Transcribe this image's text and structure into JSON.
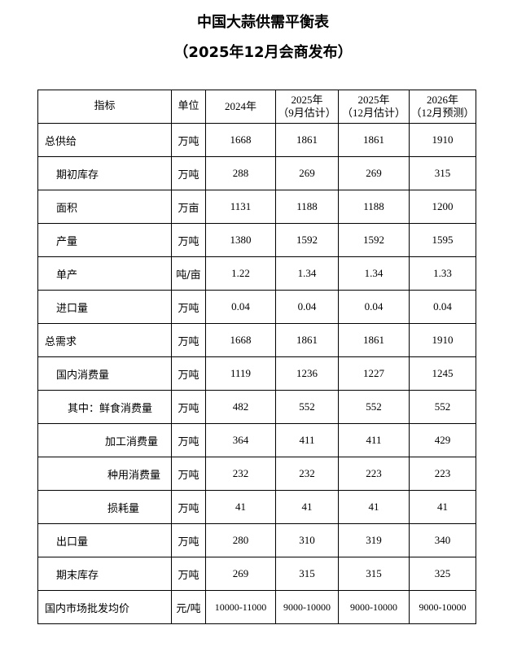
{
  "title": "中国大蒜供需平衡表",
  "subtitle": "（2025年12月会商发布）",
  "table": {
    "headers": [
      "指标",
      "单位",
      "2024年",
      "2025年\n（9月估计）",
      "2025年\n（12月估计）",
      "2026年\n（12月预测）"
    ],
    "rows": [
      {
        "label": "总供给",
        "level": 0,
        "unit": "万吨",
        "values": [
          "1668",
          "1861",
          "1861",
          "1910"
        ]
      },
      {
        "label": "期初库存",
        "level": 1,
        "unit": "万吨",
        "values": [
          "288",
          "269",
          "269",
          "315"
        ]
      },
      {
        "label": "面积",
        "level": 1,
        "unit": "万亩",
        "values": [
          "1131",
          "1188",
          "1188",
          "1200"
        ]
      },
      {
        "label": "产量",
        "level": 1,
        "unit": "万吨",
        "values": [
          "1380",
          "1592",
          "1592",
          "1595"
        ]
      },
      {
        "label": "单产",
        "level": 1,
        "unit": "吨/亩",
        "values": [
          "1.22",
          "1.34",
          "1.34",
          "1.33"
        ]
      },
      {
        "label": "进口量",
        "level": 1,
        "unit": "万吨",
        "values": [
          "0.04",
          "0.04",
          "0.04",
          "0.04"
        ]
      },
      {
        "label": "总需求",
        "level": 0,
        "unit": "万吨",
        "values": [
          "1668",
          "1861",
          "1861",
          "1910"
        ]
      },
      {
        "label": "国内消费量",
        "level": 1,
        "unit": "万吨",
        "values": [
          "1119",
          "1236",
          "1227",
          "1245"
        ]
      },
      {
        "label": "其中：鲜食消费量",
        "level": 2,
        "unit": "万吨",
        "values": [
          "482",
          "552",
          "552",
          "552"
        ]
      },
      {
        "label": "加工消费量",
        "level": 3,
        "unit": "万吨",
        "values": [
          "364",
          "411",
          "411",
          "429"
        ]
      },
      {
        "label": "种用消费量",
        "level": 4,
        "unit": "万吨",
        "values": [
          "232",
          "232",
          "223",
          "223"
        ]
      },
      {
        "label": "损耗量",
        "level": 4,
        "unit": "万吨",
        "values": [
          "41",
          "41",
          "41",
          "41"
        ]
      },
      {
        "label": "出口量",
        "level": 1,
        "unit": "万吨",
        "values": [
          "280",
          "310",
          "319",
          "340"
        ]
      },
      {
        "label": "期末库存",
        "level": 1,
        "unit": "万吨",
        "values": [
          "269",
          "315",
          "315",
          "325"
        ]
      },
      {
        "label": "国内市场批发均价",
        "level": 0,
        "unit": "元/吨",
        "values": [
          "10000-11000",
          "9000-10000",
          "9000-10000",
          "9000-10000"
        ]
      }
    ]
  }
}
